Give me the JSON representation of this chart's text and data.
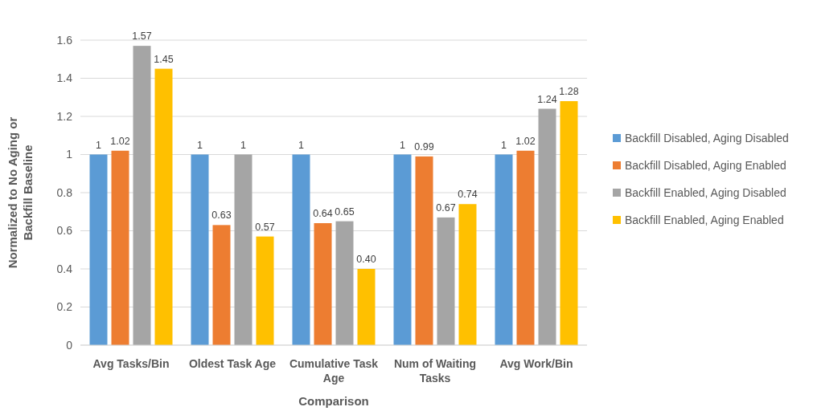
{
  "chart_data": {
    "type": "bar",
    "xlabel": "Comparison",
    "ylabel": "Normalized to No Aging or Backfill Baseline",
    "categories": [
      "Avg Tasks/Bin",
      "Oldest Task Age",
      "Cumulative Task Age",
      "Num of Waiting Tasks",
      "Avg Work/Bin"
    ],
    "series": [
      {
        "name": "Backfill Disabled, Aging Disabled",
        "color": "#5b9bd5",
        "values": [
          1,
          1,
          1,
          1,
          1
        ],
        "value_labels": [
          "1",
          "1",
          "1",
          "1",
          "1"
        ]
      },
      {
        "name": "Backfill Disabled, Aging Enabled",
        "color": "#ed7d31",
        "values": [
          1.02,
          0.63,
          0.64,
          0.99,
          1.02
        ],
        "value_labels": [
          "1.02",
          "0.63",
          "0.64",
          "0.99",
          "1.02"
        ]
      },
      {
        "name": "Backfill Enabled, Aging Disabled",
        "color": "#a5a5a5",
        "values": [
          1.57,
          1,
          0.65,
          0.67,
          1.24
        ],
        "value_labels": [
          "1.57",
          "1",
          "0.65",
          "0.67",
          "1.24"
        ]
      },
      {
        "name": "Backfill Enabled, Aging Enabled",
        "color": "#ffc000",
        "values": [
          1.45,
          0.57,
          0.4,
          0.74,
          1.28
        ],
        "value_labels": [
          "1.45",
          "0.57",
          "0.40",
          "0.74",
          "1.28"
        ]
      }
    ],
    "ylim": [
      0,
      1.6
    ],
    "yticks": [
      0,
      0.2,
      0.4,
      0.6,
      0.8,
      1,
      1.2,
      1.4,
      1.6
    ],
    "grid": "y",
    "legend": "right"
  }
}
